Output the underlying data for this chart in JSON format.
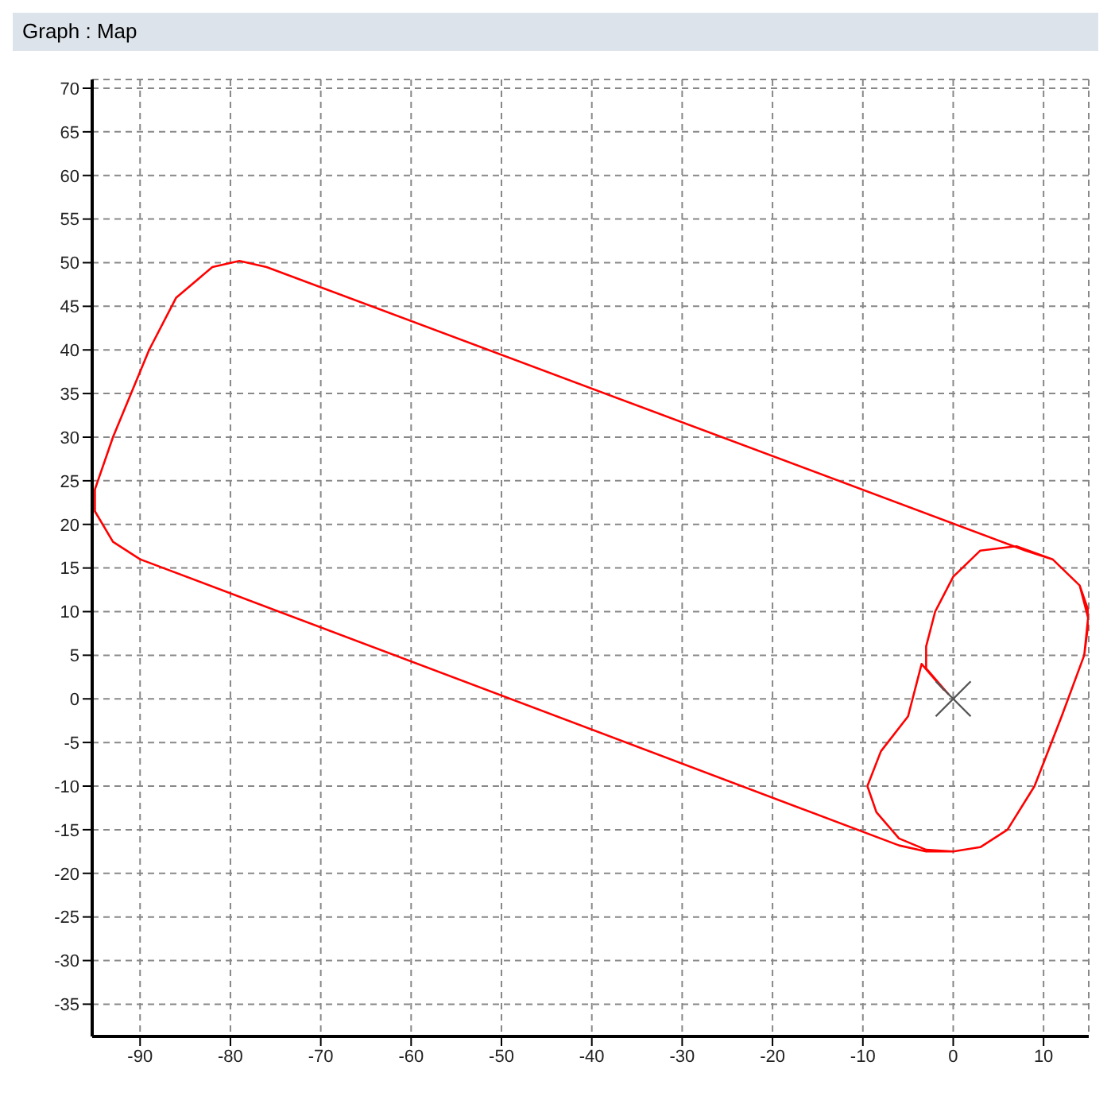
{
  "chart_data": {
    "type": "line",
    "title": "Graph : Map",
    "xlim": [
      -95.3,
      15
    ],
    "xticks": [
      -90,
      -80,
      -70,
      -60,
      -50,
      -40,
      -30,
      -20,
      -10,
      0,
      10
    ],
    "ylim": [
      -38.7,
      71
    ],
    "yticks": [
      -35,
      -30,
      -25,
      -20,
      -15,
      -10,
      -5,
      0,
      5,
      10,
      15,
      20,
      25,
      30,
      35,
      40,
      45,
      50,
      55,
      60,
      65,
      70
    ],
    "grid": true,
    "legend": false,
    "marker": "none",
    "line_style": "solid",
    "series": [
      {
        "color": "#ff0000",
        "x": [
          -0.5,
          -3,
          -3,
          -2,
          0,
          3,
          7,
          11,
          14,
          15,
          14.5,
          12,
          9,
          6,
          3,
          0,
          -3,
          -6,
          -90,
          -93,
          -95,
          -95,
          -93,
          -89,
          -86,
          -82,
          -79,
          -76,
          8,
          11,
          14,
          15,
          14.5,
          12,
          9,
          6,
          3,
          0,
          -3,
          -6,
          -8.5,
          -9.5,
          -8,
          -5,
          -4,
          -3.5,
          -1
        ],
        "values": [
          0.5,
          3.5,
          6,
          10,
          14,
          17,
          17.5,
          16,
          13,
          10,
          5,
          -2,
          -10,
          -15,
          -17,
          -17.5,
          -17.5,
          -16.8,
          16,
          18,
          21.5,
          24,
          30,
          40,
          46,
          49.5,
          50.2,
          49.5,
          17,
          16,
          13,
          9,
          5,
          -2,
          -10,
          -15,
          -17,
          -17.5,
          -17.3,
          -16,
          -13,
          -10,
          -6,
          -2,
          2,
          4,
          1
        ]
      },
      {
        "type": "scatter",
        "marker": "cross",
        "color": "#555555",
        "x": [
          0
        ],
        "values": [
          0
        ]
      }
    ]
  }
}
